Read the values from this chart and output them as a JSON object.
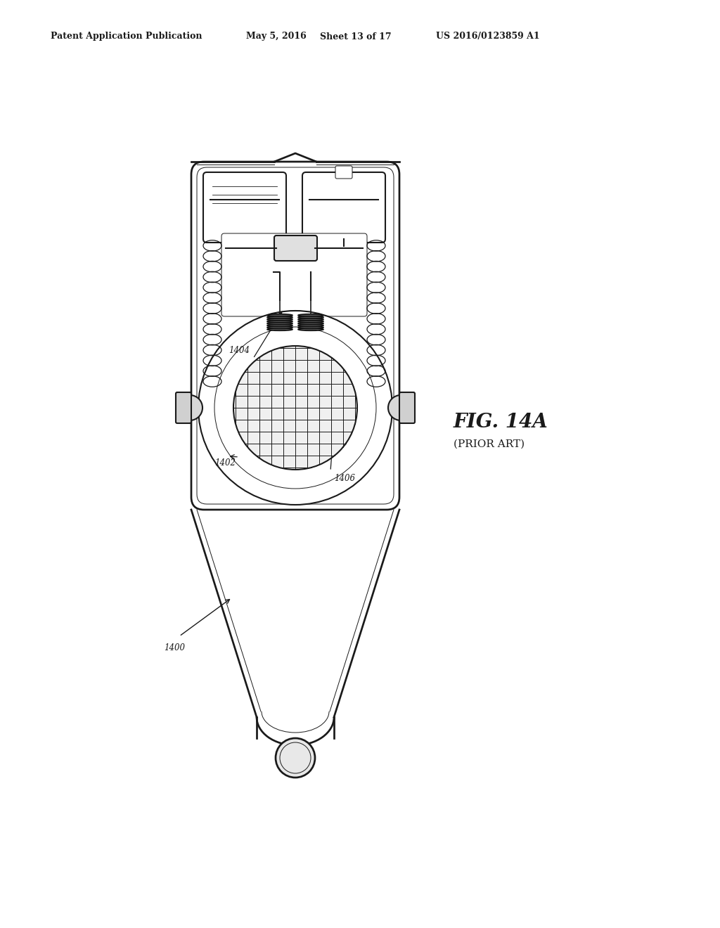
{
  "bg_color": "#ffffff",
  "header_text": "Patent Application Publication",
  "header_date": "May 5, 2016",
  "header_sheet": "Sheet 13 of 17",
  "header_patent": "US 2016/0123859 A1",
  "fig_label": "FIG. 14A",
  "fig_sublabel": "(PRIOR ART)",
  "label_1400": "1400",
  "label_1402": "1402",
  "label_1404": "1404",
  "label_1406": "1406",
  "line_color": "#1a1a1a",
  "line_width": 1.5,
  "thin_line": 0.7
}
